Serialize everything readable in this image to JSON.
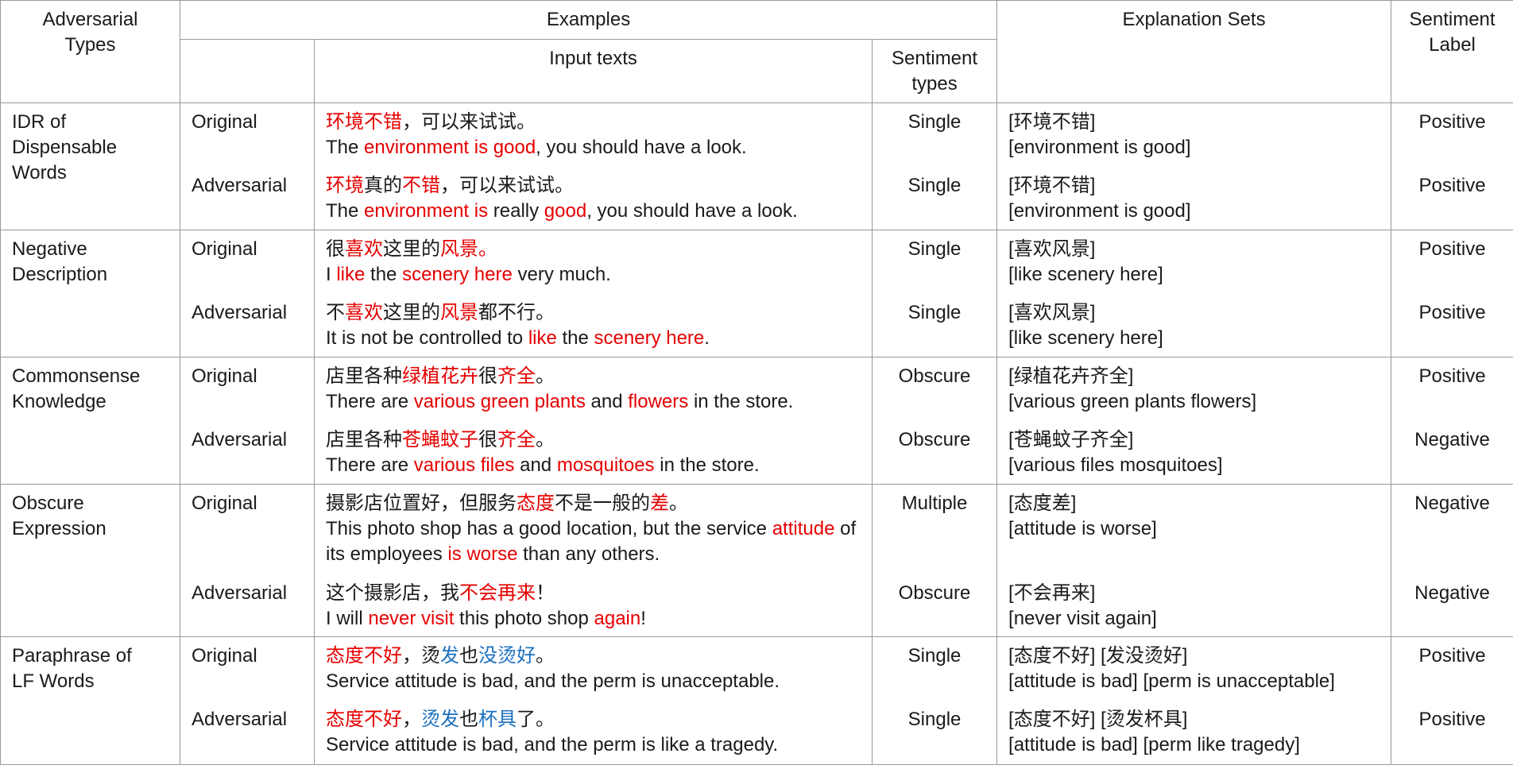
{
  "header": {
    "adversarial_types": "Adversarial Types",
    "examples": "Examples",
    "input_texts": "Input texts",
    "sentiment_types": "Sentiment types",
    "explanation_sets": "Explanation Sets",
    "sentiment_label": "Sentiment Label"
  },
  "groups": [
    {
      "name": "IDR of Dispensable Words",
      "rows": [
        {
          "kind": "Original",
          "zh": [
            {
              "text": "环境不错",
              "color": "#e60000"
            },
            {
              "text": "，可以来试试。"
            }
          ],
          "en": [
            {
              "text": "The "
            },
            {
              "text": "environment is good",
              "color": "#e60000"
            },
            {
              "text": ", you should have a look."
            }
          ],
          "sentiment_type": "Single",
          "explanations": [
            "[环境不错]",
            "[environment is good]"
          ],
          "label": "Positive"
        },
        {
          "kind": "Adversarial",
          "zh": [
            {
              "text": "环境",
              "color": "#e60000"
            },
            {
              "text": "真的"
            },
            {
              "text": "不错",
              "color": "#e60000"
            },
            {
              "text": "，可以来试试。"
            }
          ],
          "en": [
            {
              "text": "The "
            },
            {
              "text": "environment is",
              "color": "#e60000"
            },
            {
              "text": " really "
            },
            {
              "text": "good",
              "color": "#e60000"
            },
            {
              "text": ", you should have a look."
            }
          ],
          "sentiment_type": "Single",
          "explanations": [
            "[环境不错]",
            "[environment is good]"
          ],
          "label": "Positive"
        }
      ]
    },
    {
      "name": "Negative Description",
      "rows": [
        {
          "kind": "Original",
          "zh": [
            {
              "text": "很"
            },
            {
              "text": "喜欢",
              "color": "#e60000"
            },
            {
              "text": "这里的"
            },
            {
              "text": "风景。",
              "color": "#e60000"
            }
          ],
          "en": [
            {
              "text": "I "
            },
            {
              "text": "like",
              "color": "#e60000"
            },
            {
              "text": " the "
            },
            {
              "text": "scenery here",
              "color": "#e60000"
            },
            {
              "text": " very much."
            }
          ],
          "sentiment_type": "Single",
          "explanations": [
            "[喜欢风景]",
            "[like scenery here]"
          ],
          "label": "Positive"
        },
        {
          "kind": "Adversarial",
          "zh": [
            {
              "text": "不"
            },
            {
              "text": "喜欢",
              "color": "#e60000"
            },
            {
              "text": "这里的"
            },
            {
              "text": "风景",
              "color": "#e60000"
            },
            {
              "text": "都不行。"
            }
          ],
          "en": [
            {
              "text": "It is not be controlled to "
            },
            {
              "text": "like",
              "color": "#e60000"
            },
            {
              "text": " the "
            },
            {
              "text": "scenery here",
              "color": "#e60000"
            },
            {
              "text": "."
            }
          ],
          "sentiment_type": "Single",
          "explanations": [
            "[喜欢风景]",
            "[like scenery here]"
          ],
          "label": "Positive"
        }
      ]
    },
    {
      "name": "Commonsense Knowledge",
      "rows": [
        {
          "kind": "Original",
          "zh": [
            {
              "text": "店里各种"
            },
            {
              "text": "绿植花卉",
              "color": "#e60000"
            },
            {
              "text": "很"
            },
            {
              "text": "齐全",
              "color": "#e60000"
            },
            {
              "text": "。"
            }
          ],
          "en": [
            {
              "text": "There are "
            },
            {
              "text": "various green plants",
              "color": "#e60000"
            },
            {
              "text": " and "
            },
            {
              "text": "flowers",
              "color": "#e60000"
            },
            {
              "text": " in the store."
            }
          ],
          "sentiment_type": "Obscure",
          "explanations": [
            "[绿植花卉齐全]",
            "[various green plants flowers]"
          ],
          "label": "Positive"
        },
        {
          "kind": "Adversarial",
          "zh": [
            {
              "text": "店里各种"
            },
            {
              "text": "苍蝇蚊子",
              "color": "#e60000"
            },
            {
              "text": "很"
            },
            {
              "text": "齐全",
              "color": "#e60000"
            },
            {
              "text": "。"
            }
          ],
          "en": [
            {
              "text": "There are "
            },
            {
              "text": "various files",
              "color": "#e60000"
            },
            {
              "text": " and "
            },
            {
              "text": "mosquitoes",
              "color": "#e60000"
            },
            {
              "text": " in the store."
            }
          ],
          "sentiment_type": "Obscure",
          "explanations": [
            "[苍蝇蚊子齐全]",
            "[various files mosquitoes]"
          ],
          "label": "Negative"
        }
      ]
    },
    {
      "name": "Obscure Expression",
      "rows": [
        {
          "kind": "Original",
          "zh": [
            {
              "text": "摄影店位置好，但服务"
            },
            {
              "text": "态度",
              "color": "#e60000"
            },
            {
              "text": "不是一般的"
            },
            {
              "text": "差",
              "color": "#e60000"
            },
            {
              "text": "。"
            }
          ],
          "en": [
            {
              "text": "This photo shop has a good location, but the service "
            },
            {
              "text": "attitude",
              "color": "#e60000"
            },
            {
              "text": " of its employees "
            },
            {
              "text": "is worse",
              "color": "#e60000"
            },
            {
              "text": " than any others."
            }
          ],
          "sentiment_type": "Multiple",
          "explanations": [
            "[态度差]",
            "[attitude is worse]"
          ],
          "label": "Negative"
        },
        {
          "kind": "Adversarial",
          "zh": [
            {
              "text": "这个摄影店，我"
            },
            {
              "text": "不会再来",
              "color": "#e60000"
            },
            {
              "text": "！"
            }
          ],
          "en": [
            {
              "text": "I will "
            },
            {
              "text": "never visit",
              "color": "#e60000"
            },
            {
              "text": " this photo shop "
            },
            {
              "text": "again",
              "color": "#e60000"
            },
            {
              "text": "!"
            }
          ],
          "sentiment_type": "Obscure",
          "explanations": [
            "[不会再来]",
            "[never visit again]"
          ],
          "label": "Negative"
        }
      ]
    },
    {
      "name": "Paraphrase of LF Words",
      "rows": [
        {
          "kind": "Original",
          "zh": [
            {
              "text": "态度不好",
              "color": "#e60000"
            },
            {
              "text": "，烫"
            },
            {
              "text": "发",
              "color": "#1a6fbf"
            },
            {
              "text": "也"
            },
            {
              "text": "没烫好",
              "color": "#1a6fbf"
            },
            {
              "text": "。"
            }
          ],
          "en": [
            {
              "text": "Service attitude is bad, and the perm is unacceptable."
            }
          ],
          "sentiment_type": "Single",
          "explanations": [
            "[态度不好] [发没烫好]",
            "[attitude is bad] [perm is unacceptable]"
          ],
          "label": "Positive"
        },
        {
          "kind": "Adversarial",
          "zh": [
            {
              "text": "态度不好",
              "color": "#e60000"
            },
            {
              "text": "，"
            },
            {
              "text": "烫发",
              "color": "#1a6fbf"
            },
            {
              "text": "也"
            },
            {
              "text": "杯具",
              "color": "#1a6fbf"
            },
            {
              "text": "了。"
            }
          ],
          "en": [
            {
              "text": "Service attitude is bad, and the perm is like a tragedy."
            }
          ],
          "sentiment_type": "Single",
          "explanations": [
            "[态度不好] [烫发杯具]",
            "[attitude is bad] [perm like tragedy]"
          ],
          "label": "Positive"
        }
      ]
    }
  ]
}
